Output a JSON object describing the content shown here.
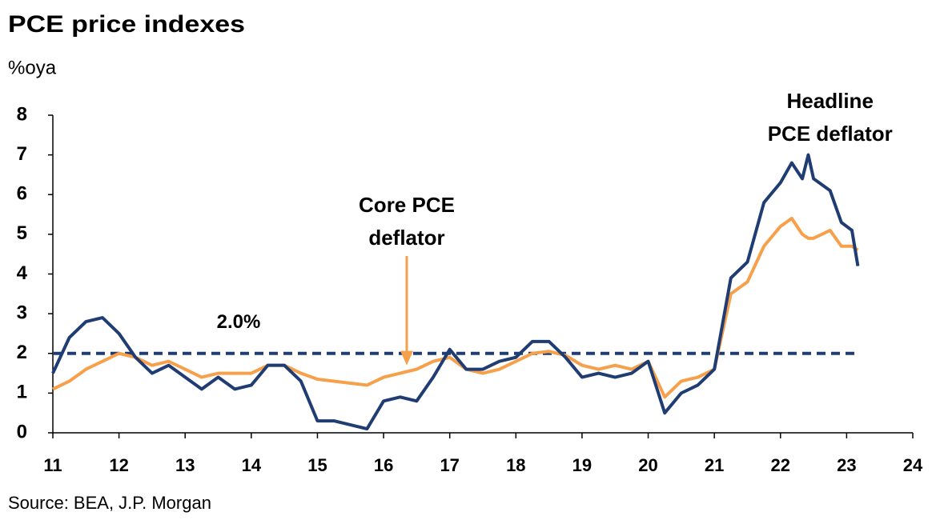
{
  "chart_data": {
    "type": "line",
    "title": "PCE price indexes",
    "subtitle": "%oya",
    "source": "Source: BEA, J.P. Morgan",
    "x": [
      11.0,
      11.25,
      11.5,
      11.75,
      12.0,
      12.25,
      12.5,
      12.75,
      13.0,
      13.25,
      13.5,
      13.75,
      14.0,
      14.25,
      14.5,
      14.75,
      15.0,
      15.25,
      15.5,
      15.75,
      16.0,
      16.25,
      16.5,
      16.75,
      17.0,
      17.25,
      17.5,
      17.75,
      18.0,
      18.25,
      18.5,
      18.75,
      19.0,
      19.25,
      19.5,
      19.75,
      20.0,
      20.25,
      20.5,
      20.75,
      21.0,
      21.25,
      21.5,
      21.75,
      22.0,
      22.17,
      22.33,
      22.42,
      22.5,
      22.75,
      22.92,
      23.08,
      23.17
    ],
    "series": [
      {
        "color": "#1f3d73",
        "values": [
          1.5,
          2.4,
          2.8,
          2.9,
          2.5,
          1.9,
          1.5,
          1.7,
          1.4,
          1.1,
          1.4,
          1.1,
          1.2,
          1.7,
          1.7,
          1.3,
          0.3,
          0.3,
          0.2,
          0.1,
          0.8,
          0.9,
          0.8,
          1.4,
          2.1,
          1.6,
          1.6,
          1.8,
          1.9,
          2.3,
          2.3,
          1.9,
          1.4,
          1.5,
          1.4,
          1.5,
          1.8,
          0.5,
          1.0,
          1.2,
          1.6,
          3.9,
          4.3,
          5.8,
          6.3,
          6.8,
          6.4,
          7.0,
          6.4,
          6.1,
          5.3,
          5.1,
          4.2
        ]
      },
      {
        "color": "#f7a04b",
        "values": [
          1.1,
          1.3,
          1.6,
          1.8,
          2.0,
          1.9,
          1.7,
          1.8,
          1.6,
          1.4,
          1.5,
          1.5,
          1.5,
          1.7,
          1.7,
          1.5,
          1.35,
          1.3,
          1.25,
          1.2,
          1.4,
          1.5,
          1.6,
          1.8,
          1.9,
          1.6,
          1.5,
          1.6,
          1.8,
          2.0,
          2.05,
          1.95,
          1.7,
          1.6,
          1.7,
          1.6,
          1.8,
          0.9,
          1.3,
          1.4,
          1.6,
          3.5,
          3.8,
          4.7,
          5.2,
          5.4,
          5.0,
          4.9,
          4.9,
          5.1,
          4.7,
          4.7,
          4.6
        ]
      }
    ],
    "xlim": [
      11,
      24
    ],
    "xticks": [
      11,
      12,
      13,
      14,
      15,
      16,
      17,
      18,
      19,
      20,
      21,
      22,
      23,
      24
    ],
    "ylim": [
      0,
      8
    ],
    "yticks": [
      0,
      1,
      2,
      3,
      4,
      5,
      6,
      7,
      8
    ],
    "reference_line": {
      "value": 2,
      "label": "2.0%",
      "color": "#1f3d73"
    },
    "annotations": [
      {
        "lines": [
          "Core PCE",
          "deflator"
        ],
        "x": 16.35,
        "arrow_to": 1.7,
        "color": "#f7a04b"
      },
      {
        "lines": [
          "Headline",
          "PCE deflator"
        ],
        "x": 22.75
      }
    ]
  }
}
